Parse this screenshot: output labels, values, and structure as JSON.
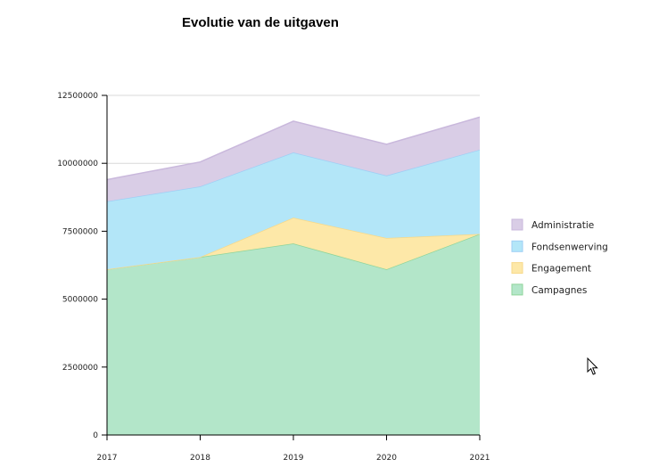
{
  "chart_data": {
    "type": "area",
    "stacked": true,
    "title": "Evolutie van de uitgaven",
    "xlabel": "",
    "ylabel": "",
    "x": [
      "2017",
      "2018",
      "2019",
      "2020",
      "2021"
    ],
    "ylim": [
      0,
      12500000
    ],
    "yticks": [
      0,
      2500000,
      5000000,
      7500000,
      10000000,
      12500000
    ],
    "ytick_labels": [
      "0",
      "2500000",
      "5000000",
      "7500000",
      "10000000",
      "12500000"
    ],
    "grid": true,
    "legend_position": "right",
    "series": [
      {
        "name": "Campagnes",
        "values": [
          6100000,
          6550000,
          7050000,
          6100000,
          7400000
        ],
        "fill": "#b3e6c9",
        "stroke": "#8fd49a"
      },
      {
        "name": "Engagement",
        "values": [
          0,
          0,
          950000,
          1150000,
          0
        ],
        "fill": "#fde8a8",
        "stroke": "#f7d98a"
      },
      {
        "name": "Fondsenwerving",
        "values": [
          2500000,
          2600000,
          2400000,
          2300000,
          3100000
        ],
        "fill": "#b3e6f8",
        "stroke": "#9fcff5"
      },
      {
        "name": "Administratie",
        "values": [
          800000,
          900000,
          1150000,
          1150000,
          1200000
        ],
        "fill": "#d9cde6",
        "stroke": "#c9b8dc"
      }
    ],
    "legend_order": [
      "Administratie",
      "Fondsenwerving",
      "Engagement",
      "Campagnes"
    ]
  }
}
